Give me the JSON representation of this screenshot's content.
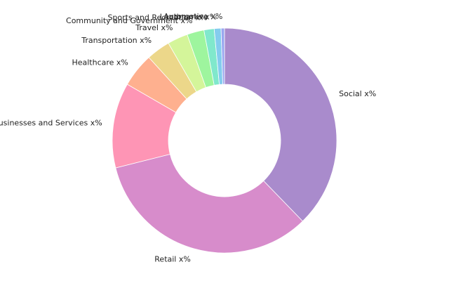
{
  "chart_data": {
    "type": "pie",
    "style": "donut",
    "start_angle_deg": 90,
    "direction": "clockwise",
    "slices": [
      {
        "label": "Social x%",
        "value": 38.5,
        "color": "#a98bcc"
      },
      {
        "label": "Retail x%",
        "value": 34.0,
        "color": "#d78ccb"
      },
      {
        "label": "Businesses and Services x%",
        "value": 12.5,
        "color": "#fe95b5"
      },
      {
        "label": "Healthcare x%",
        "value": 5.0,
        "color": "#feb08f"
      },
      {
        "label": "Transportation x%",
        "value": 3.5,
        "color": "#ecd78a"
      },
      {
        "label": "Travel x%",
        "value": 3.0,
        "color": "#d4f59a"
      },
      {
        "label": "Community and Government x%",
        "value": 2.5,
        "color": "#9ef59e"
      },
      {
        "label": "Sports and Recreation x%",
        "value": 1.5,
        "color": "#80e8cc"
      },
      {
        "label": "Landmarks x%",
        "value": 1.0,
        "color": "#84ccee"
      },
      {
        "label": "Automotive x%",
        "value": 0.5,
        "color": "#9aa8f0"
      }
    ]
  }
}
